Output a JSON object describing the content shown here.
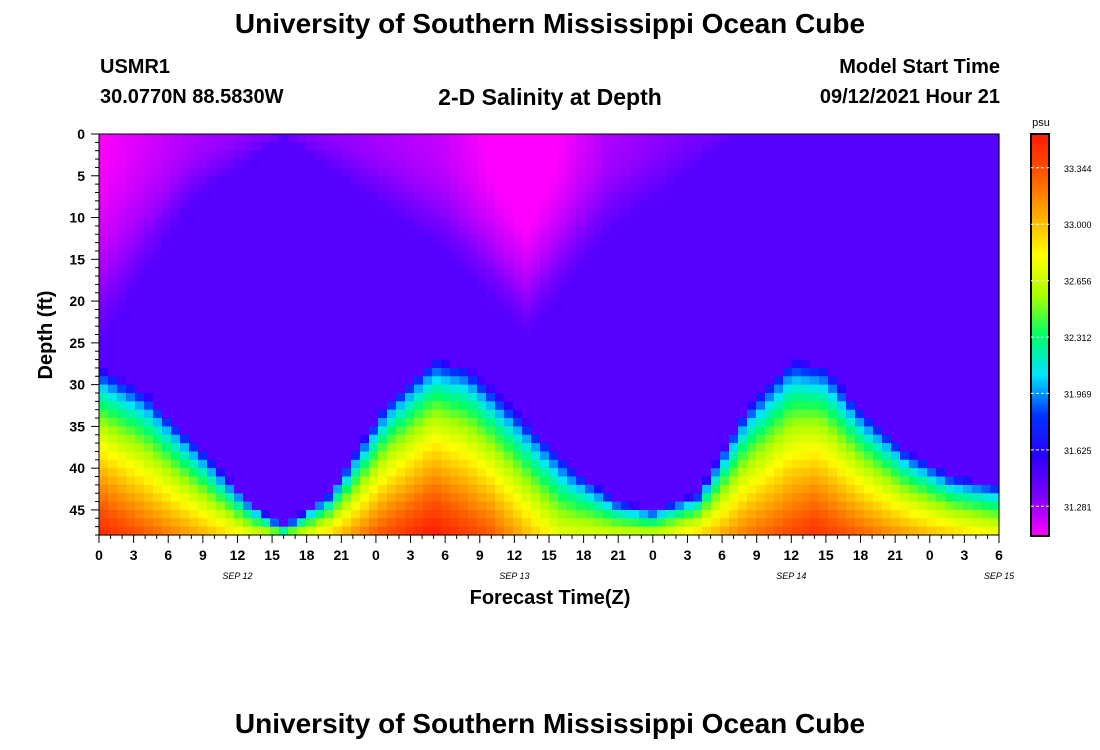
{
  "header": {
    "title": "University of Southern Mississippi Ocean Cube",
    "station": "USMR1",
    "coords": "30.0770N  88.5830W",
    "subtitle": "2-D Salinity at Depth",
    "start_label": "Model Start Time",
    "start_time": "09/12/2021 Hour 21"
  },
  "footer": {
    "title": "University of Southern Mississippi Ocean Cube"
  },
  "chart_data": {
    "type": "heatmap",
    "title": "2-D Salinity at Depth",
    "xlabel": "Forecast Time(Z)",
    "ylabel": "Depth (ft)",
    "x_ticks": [
      "0",
      "3",
      "6",
      "9",
      "12",
      "15",
      "18",
      "21",
      "0",
      "3",
      "6",
      "9",
      "12",
      "15",
      "18",
      "21",
      "0",
      "3",
      "6",
      "9",
      "12",
      "15",
      "18",
      "21",
      "0",
      "3",
      "6"
    ],
    "x_range_hours": [
      0,
      78
    ],
    "date_labels": [
      {
        "label": "SEP 12",
        "hour": 12
      },
      {
        "label": "SEP 13",
        "hour": 36
      },
      {
        "label": "SEP 14",
        "hour": 60
      },
      {
        "label": "SEP 15",
        "hour": 78
      }
    ],
    "y_ticks": [
      "0",
      "5",
      "10",
      "15",
      "20",
      "25",
      "30",
      "35",
      "40",
      "45"
    ],
    "y_range_ft": [
      0,
      48
    ],
    "y_inverted": true,
    "colorbar": {
      "unit": "psu",
      "labels": [
        "33.344",
        "33.000",
        "32.656",
        "32.312",
        "31.969",
        "31.625",
        "31.281"
      ],
      "range_psu": [
        31.1,
        33.55
      ],
      "colors": [
        "#ff00ff",
        "#7a00ff",
        "#2a00ff",
        "#0033ff",
        "#00e5ff",
        "#00ff66",
        "#aaff00",
        "#ffff00",
        "#ffaa00",
        "#ff5500",
        "#ff1a00"
      ]
    },
    "salinity_profile": {
      "interface_depth_ft": [
        {
          "hour": 0,
          "depth": 28
        },
        {
          "hour": 4,
          "depth": 31
        },
        {
          "hour": 9,
          "depth": 38
        },
        {
          "hour": 13,
          "depth": 44
        },
        {
          "hour": 16,
          "depth": 47
        },
        {
          "hour": 20,
          "depth": 43
        },
        {
          "hour": 25,
          "depth": 32
        },
        {
          "hour": 29,
          "depth": 27
        },
        {
          "hour": 32,
          "depth": 28
        },
        {
          "hour": 36,
          "depth": 33
        },
        {
          "hour": 41,
          "depth": 40
        },
        {
          "hour": 45,
          "depth": 44
        },
        {
          "hour": 48,
          "depth": 45
        },
        {
          "hour": 52,
          "depth": 43
        },
        {
          "hour": 56,
          "depth": 33
        },
        {
          "hour": 60,
          "depth": 27
        },
        {
          "hour": 63,
          "depth": 28
        },
        {
          "hour": 66,
          "depth": 33
        },
        {
          "hour": 70,
          "depth": 38
        },
        {
          "hour": 74,
          "depth": 41
        },
        {
          "hour": 78,
          "depth": 42
        }
      ],
      "surface_low_salinity": [
        {
          "hour": 0,
          "extent_ft": 25,
          "psu": 31.1
        },
        {
          "hour": 8,
          "extent_ft": 8,
          "psu": 31.25
        },
        {
          "hour": 16,
          "extent_ft": 0,
          "psu": 31.35
        },
        {
          "hour": 30,
          "extent_ft": 14,
          "psu": 31.2
        },
        {
          "hour": 37,
          "extent_ft": 24,
          "psu": 31.0
        },
        {
          "hour": 44,
          "extent_ft": 12,
          "psu": 31.25
        },
        {
          "hour": 55,
          "extent_ft": 0,
          "psu": 31.4
        },
        {
          "hour": 78,
          "extent_ft": 0,
          "psu": 31.4
        }
      ],
      "bottom_max_psu": [
        {
          "hour": 0,
          "psu": 33.5
        },
        {
          "hour": 10,
          "psu": 33.0
        },
        {
          "hour": 16,
          "psu": 32.6
        },
        {
          "hour": 24,
          "psu": 33.3
        },
        {
          "hour": 29,
          "psu": 33.55
        },
        {
          "hour": 34,
          "psu": 33.3
        },
        {
          "hour": 40,
          "psu": 32.75
        },
        {
          "hour": 48,
          "psu": 32.7
        },
        {
          "hour": 56,
          "psu": 33.2
        },
        {
          "hour": 62,
          "psu": 33.45
        },
        {
          "hour": 70,
          "psu": 33.1
        },
        {
          "hour": 78,
          "psu": 32.8
        }
      ]
    }
  }
}
